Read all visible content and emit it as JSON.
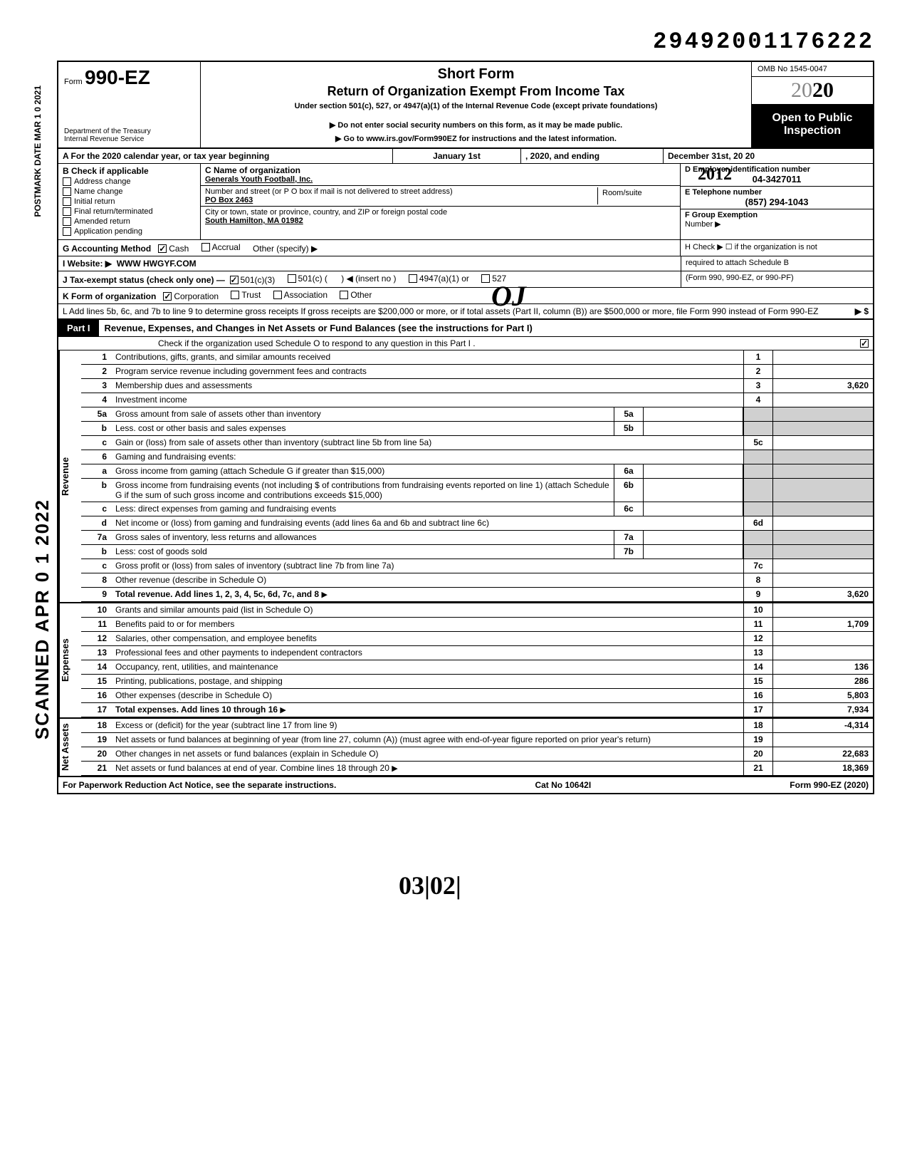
{
  "doc_number": "29492001176222",
  "omb": "OMB No 1545-0047",
  "year_display": "2020",
  "form_number": "990-EZ",
  "form_prefix": "Form",
  "short_form": "Short Form",
  "return_title": "Return of Organization Exempt From Income Tax",
  "under_section": "Under section 501(c), 527, or 4947(a)(1) of the Internal Revenue Code (except private foundations)",
  "do_not": "▶ Do not enter social security numbers on this form, as it may be made public.",
  "goto": "▶ Go to www.irs.gov/Form990EZ for instructions and the latest information.",
  "dept1": "Department of the Treasury",
  "dept2": "Internal Revenue Service",
  "open_public1": "Open to Public",
  "open_public2": "Inspection",
  "hand_year": "2012",
  "postmark": "POSTMARK DATE MAR 1 0 2021",
  "scanned": "SCANNED APR 0 1 2022",
  "rowA": {
    "label": "A  For the 2020 calendar year, or tax year beginning",
    "begin": "January 1st",
    "mid": ", 2020, and ending",
    "end": "December 31st",
    "end_suffix": ", 20   20"
  },
  "B": {
    "header": "B  Check if applicable",
    "items": [
      "Address change",
      "Name change",
      "Initial return",
      "Final return/terminated",
      "Amended return",
      "Application pending"
    ]
  },
  "C": {
    "name_label": "C  Name of organization",
    "name": "Generals Youth Football, Inc.",
    "street_label": "Number and street (or P O  box if mail is not delivered to street address)",
    "room_label": "Room/suite",
    "street": "PO Box 2463",
    "city_label": "City or town, state or province, country, and ZIP or foreign postal code",
    "city": "South Hamilton, MA 01982"
  },
  "D": {
    "label": "D Employer identification number",
    "value": "04-3427011"
  },
  "E": {
    "label": "E Telephone number",
    "value": "(857) 294-1043"
  },
  "F": {
    "label": "F Group Exemption",
    "label2": "Number ▶"
  },
  "G": {
    "label": "G  Accounting Method",
    "cash": "Cash",
    "accrual": "Accrual",
    "other": "Other (specify) ▶"
  },
  "H": {
    "line1": "H  Check ▶ ☐ if the organization is not",
    "line2": "required to attach Schedule B",
    "line3": "(Form 990, 990-EZ, or 990-PF)"
  },
  "I": {
    "label": "I  Website: ▶",
    "value": "WWW HWGYF.COM"
  },
  "J": {
    "label": "J  Tax-exempt status (check only one) —",
    "o1": "501(c)(3)",
    "o2": "501(c) (",
    "o2b": ") ◀ (insert no )",
    "o3": "4947(a)(1) or",
    "o4": "527"
  },
  "K": {
    "label": "K  Form of organization",
    "o1": "Corporation",
    "o2": "Trust",
    "o3": "Association",
    "o4": "Other"
  },
  "L": {
    "text": "L  Add lines 5b, 6c, and 7b to line 9 to determine gross receipts  If gross receipts are $200,000 or more, or if total assets (Part II, column (B)) are $500,000 or more, file Form 990 instead of Form 990-EZ",
    "arrow": "▶  $"
  },
  "part1": {
    "badge": "Part I",
    "title": "Revenue, Expenses, and Changes in Net Assets or Fund Balances (see the instructions for Part I)",
    "note": "Check if the organization used Schedule O to respond to any question in this Part I  ."
  },
  "sections": {
    "revenue": "Revenue",
    "expenses": "Expenses",
    "netassets": "Net Assets"
  },
  "revenue_lines": [
    {
      "n": "1",
      "d": "Contributions, gifts, grants, and similar amounts received",
      "bn": "1",
      "amt": ""
    },
    {
      "n": "2",
      "d": "Program service revenue including government fees and contracts",
      "bn": "2",
      "amt": ""
    },
    {
      "n": "3",
      "d": "Membership dues and assessments",
      "bn": "3",
      "amt": "3,620"
    },
    {
      "n": "4",
      "d": "Investment income",
      "bn": "4",
      "amt": ""
    },
    {
      "n": "5a",
      "d": "Gross amount from sale of assets other than inventory",
      "mn": "5a"
    },
    {
      "n": "b",
      "d": "Less. cost or other basis and sales expenses",
      "mn": "5b"
    },
    {
      "n": "c",
      "d": "Gain or (loss) from sale of assets other than inventory (subtract line 5b from line 5a)",
      "bn": "5c",
      "amt": ""
    },
    {
      "n": "6",
      "d": "Gaming and fundraising events:"
    },
    {
      "n": "a",
      "d": "Gross income from gaming (attach Schedule G if greater than $15,000)",
      "mn": "6a"
    },
    {
      "n": "b",
      "d": "Gross income from fundraising events (not including  $                          of contributions from fundraising events reported on line 1) (attach Schedule G if the sum of such gross income and contributions exceeds $15,000)",
      "mn": "6b"
    },
    {
      "n": "c",
      "d": "Less: direct expenses from gaming and fundraising events",
      "mn": "6c"
    },
    {
      "n": "d",
      "d": "Net income or (loss) from gaming and fundraising events (add lines 6a and 6b and subtract line 6c)",
      "bn": "6d",
      "amt": ""
    },
    {
      "n": "7a",
      "d": "Gross sales of inventory, less returns and allowances",
      "mn": "7a"
    },
    {
      "n": "b",
      "d": "Less: cost of goods sold",
      "mn": "7b"
    },
    {
      "n": "c",
      "d": "Gross profit or (loss) from sales of inventory (subtract line 7b from line 7a)",
      "bn": "7c",
      "amt": ""
    },
    {
      "n": "8",
      "d": "Other revenue (describe in Schedule O)",
      "bn": "8",
      "amt": ""
    },
    {
      "n": "9",
      "d": "Total revenue. Add lines 1, 2, 3, 4, 5c, 6d, 7c, and 8",
      "bn": "9",
      "amt": "3,620",
      "bold": true,
      "arrow": true
    }
  ],
  "expense_lines": [
    {
      "n": "10",
      "d": "Grants and similar amounts paid (list in Schedule O)",
      "bn": "10",
      "amt": ""
    },
    {
      "n": "11",
      "d": "Benefits paid to or for members",
      "bn": "11",
      "amt": "1,709"
    },
    {
      "n": "12",
      "d": "Salaries, other compensation, and employee benefits",
      "bn": "12",
      "amt": ""
    },
    {
      "n": "13",
      "d": "Professional fees and other payments to independent contractors",
      "bn": "13",
      "amt": ""
    },
    {
      "n": "14",
      "d": "Occupancy, rent, utilities, and maintenance",
      "bn": "14",
      "amt": "136"
    },
    {
      "n": "15",
      "d": "Printing, publications, postage, and shipping",
      "bn": "15",
      "amt": "286"
    },
    {
      "n": "16",
      "d": "Other expenses (describe in Schedule O)",
      "bn": "16",
      "amt": "5,803"
    },
    {
      "n": "17",
      "d": "Total expenses. Add lines 10 through 16",
      "bn": "17",
      "amt": "7,934",
      "bold": true,
      "arrow": true
    }
  ],
  "netasset_lines": [
    {
      "n": "18",
      "d": "Excess or (deficit) for the year (subtract line 17 from line 9)",
      "bn": "18",
      "amt": "-4,314"
    },
    {
      "n": "19",
      "d": "Net assets or fund balances at beginning of year (from line 27, column (A)) (must agree with end-of-year figure reported on prior year's return)",
      "bn": "19",
      "amt": ""
    },
    {
      "n": "20",
      "d": "Other changes in net assets or fund balances (explain in Schedule O)",
      "bn": "20",
      "amt": "22,683"
    },
    {
      "n": "21",
      "d": "Net assets or fund balances at end of year. Combine lines 18 through 20",
      "bn": "21",
      "amt": "18,369",
      "arrow": true
    }
  ],
  "footer": {
    "left": "For Paperwork Reduction Act Notice, see the separate instructions.",
    "mid": "Cat No  10642I",
    "right": "Form 990-EZ (2020)"
  },
  "hand_initial": "OJ",
  "hand_date": "03|02|"
}
